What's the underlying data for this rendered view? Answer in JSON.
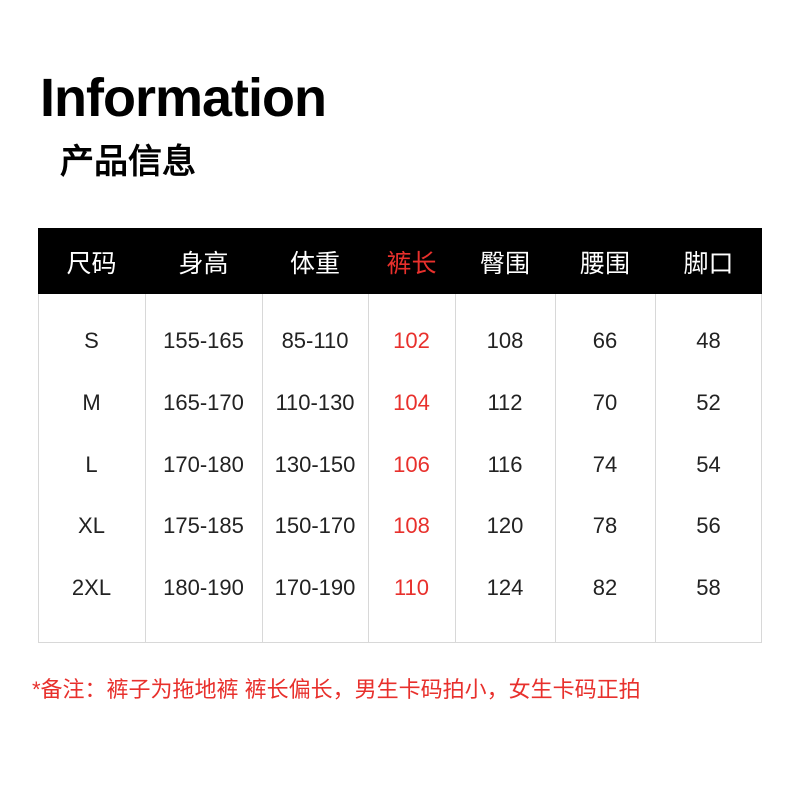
{
  "header": {
    "title": "Information",
    "subtitle": "产品信息"
  },
  "table": {
    "headers": [
      "尺码",
      "身高",
      "体重",
      "裤长",
      "臀围",
      "腰围",
      "脚口"
    ],
    "rows": [
      [
        "S",
        "155-165",
        "85-110",
        "102",
        "108",
        "66",
        "48"
      ],
      [
        "M",
        "165-170",
        "110-130",
        "104",
        "112",
        "70",
        "52"
      ],
      [
        "L",
        "170-180",
        "130-150",
        "106",
        "116",
        "74",
        "54"
      ],
      [
        "XL",
        "175-185",
        "150-170",
        "108",
        "120",
        "78",
        "56"
      ],
      [
        "2XL",
        "180-190",
        "170-190",
        "110",
        "124",
        "82",
        "58"
      ]
    ]
  },
  "note": "*备注：裤子为拖地裤 裤长偏长，男生卡码拍小，女生卡码正拍"
}
